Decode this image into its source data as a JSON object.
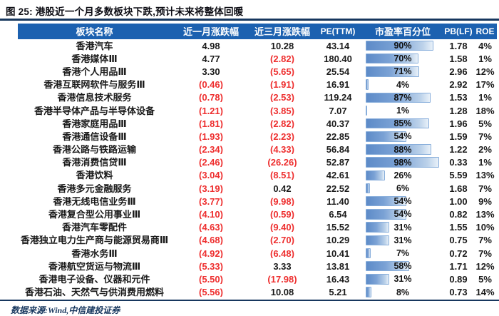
{
  "title": "图 25: 港股近一个月多数板块下跌,预计未来将整体回暖",
  "source": "数据来源:Wind,中信建投证券",
  "colors": {
    "header_bg": "#1c61b0",
    "rule": "#17375e",
    "negative_text": "#ee2f2f",
    "bar_fill_start": "#5d8bc8",
    "bar_fill_end": "#e9f1f9",
    "bar_border": "#88aedb"
  },
  "table": {
    "columns": [
      "板块名称",
      "近一月涨跌幅",
      "近三月涨跌幅",
      "PE(TTM)",
      "市盈率百分位",
      "PB(LF)",
      "ROE"
    ],
    "rows": [
      {
        "name": "香港汽车",
        "m1": "4.98",
        "m3": "10.28",
        "pe": "43.14",
        "pe_pct": 90,
        "pe_pct_label": "90%",
        "pb": "1.78",
        "roe": "4%"
      },
      {
        "name": "香港媒体Ⅲ",
        "m1": "4.77",
        "m3": "(2.82)",
        "pe": "180.40",
        "pe_pct": 70,
        "pe_pct_label": "70%",
        "pb": "1.58",
        "roe": "1%"
      },
      {
        "name": "香港个人用品Ⅲ",
        "m1": "3.30",
        "m3": "(5.65)",
        "pe": "25.54",
        "pe_pct": 71,
        "pe_pct_label": "71%",
        "pb": "2.96",
        "roe": "12%"
      },
      {
        "name": "香港互联网软件与服务Ⅲ",
        "m1": "(0.46)",
        "m3": "(1.91)",
        "pe": "16.91",
        "pe_pct": 4,
        "pe_pct_label": "4%",
        "pb": "2.92",
        "roe": "17%"
      },
      {
        "name": "香港信息技术服务",
        "m1": "(0.78)",
        "m3": "(2.53)",
        "pe": "119.24",
        "pe_pct": 87,
        "pe_pct_label": "87%",
        "pb": "1.53",
        "roe": "1%"
      },
      {
        "name": "香港半导体产品与半导体设备",
        "m1": "(1.21)",
        "m3": "(3.85)",
        "pe": "7.07",
        "pe_pct": 1,
        "pe_pct_label": "1%",
        "pb": "1.28",
        "roe": "18%"
      },
      {
        "name": "香港家庭用品Ⅲ",
        "m1": "(1.81)",
        "m3": "(2.82)",
        "pe": "40.37",
        "pe_pct": 85,
        "pe_pct_label": "85%",
        "pb": "1.96",
        "roe": "5%"
      },
      {
        "name": "香港通信设备Ⅲ",
        "m1": "(1.93)",
        "m3": "(2.23)",
        "pe": "22.85",
        "pe_pct": 54,
        "pe_pct_label": "54%",
        "pb": "1.59",
        "roe": "7%"
      },
      {
        "name": "香港公路与铁路运输",
        "m1": "(2.34)",
        "m3": "(4.33)",
        "pe": "56.84",
        "pe_pct": 88,
        "pe_pct_label": "88%",
        "pb": "1.22",
        "roe": "2%"
      },
      {
        "name": "香港消费信贷Ⅲ",
        "m1": "(2.46)",
        "m3": "(26.26)",
        "pe": "52.87",
        "pe_pct": 98,
        "pe_pct_label": "98%",
        "pb": "0.33",
        "roe": "1%"
      },
      {
        "name": "香港饮料",
        "m1": "(3.04)",
        "m3": "(8.51)",
        "pe": "42.61",
        "pe_pct": 26,
        "pe_pct_label": "26%",
        "pb": "5.59",
        "roe": "13%"
      },
      {
        "name": "香港多元金融服务",
        "m1": "(3.19)",
        "m3": "0.42",
        "pe": "22.52",
        "pe_pct": 6,
        "pe_pct_label": "6%",
        "pb": "1.68",
        "roe": "7%"
      },
      {
        "name": "香港无线电信业务Ⅲ",
        "m1": "(3.77)",
        "m3": "(9.98)",
        "pe": "11.40",
        "pe_pct": 54,
        "pe_pct_label": "54%",
        "pb": "1.00",
        "roe": "9%"
      },
      {
        "name": "香港复合型公用事业Ⅲ",
        "m1": "(4.10)",
        "m3": "(0.59)",
        "pe": "6.54",
        "pe_pct": 54,
        "pe_pct_label": "54%",
        "pb": "0.82",
        "roe": "13%"
      },
      {
        "name": "香港汽车零配件",
        "m1": "(4.63)",
        "m3": "(9.40)",
        "pe": "15.52",
        "pe_pct": 31,
        "pe_pct_label": "31%",
        "pb": "1.55",
        "roe": "10%"
      },
      {
        "name": "香港独立电力生产商与能源贸易商Ⅲ",
        "m1": "(4.68)",
        "m3": "(2.70)",
        "pe": "10.29",
        "pe_pct": 31,
        "pe_pct_label": "31%",
        "pb": "0.75",
        "roe": "7%"
      },
      {
        "name": "香港水务Ⅲ",
        "m1": "(4.92)",
        "m3": "(6.48)",
        "pe": "10.41",
        "pe_pct": 7,
        "pe_pct_label": "7%",
        "pb": "0.72",
        "roe": "7%"
      },
      {
        "name": "香港航空货运与物流Ⅲ",
        "m1": "(5.33)",
        "m3": "3.33",
        "pe": "13.81",
        "pe_pct": 58,
        "pe_pct_label": "58%",
        "pb": "1.71",
        "roe": "12%"
      },
      {
        "name": "香港电子设备、仪器和元件",
        "m1": "(5.50)",
        "m3": "(17.98)",
        "pe": "16.43",
        "pe_pct": 31,
        "pe_pct_label": "31%",
        "pb": "0.89",
        "roe": "5%"
      },
      {
        "name": "香港石油、天然气与供消费用燃料",
        "m1": "(5.56)",
        "m3": "10.08",
        "pe": "5.21",
        "pe_pct": 8,
        "pe_pct_label": "8%",
        "pb": "0.73",
        "roe": "14%"
      }
    ]
  }
}
